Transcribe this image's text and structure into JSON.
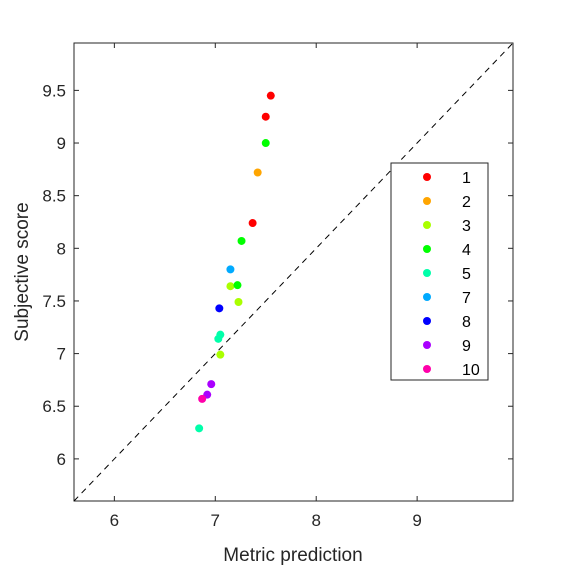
{
  "chart_data": {
    "type": "scatter",
    "title": "",
    "xlabel": "Metric prediction",
    "ylabel": "Subjective score",
    "xlim": [
      5.6,
      9.95
    ],
    "ylim": [
      5.6,
      9.95
    ],
    "xticks": [
      6,
      7,
      8,
      9
    ],
    "yticks": [
      6,
      6.5,
      7,
      7.5,
      8,
      8.5,
      9,
      9.5
    ],
    "x_tick_labels": [
      "6",
      "7",
      "8",
      "9"
    ],
    "y_tick_labels": [
      "6",
      "6.5",
      "7",
      "7.5",
      "8",
      "8.5",
      "9",
      "9.5"
    ],
    "grid": false,
    "reference_line": {
      "style": "dashed",
      "from": [
        5.6,
        5.6
      ],
      "to": [
        9.95,
        9.95
      ]
    },
    "legend": {
      "placement": "right"
    },
    "series": [
      {
        "name": "1",
        "color": "#ff0000",
        "points": [
          [
            7.55,
            9.45
          ],
          [
            7.5,
            9.25
          ],
          [
            7.37,
            8.24
          ]
        ]
      },
      {
        "name": "2",
        "color": "#ffa500",
        "points": [
          [
            7.42,
            8.72
          ]
        ]
      },
      {
        "name": "3",
        "color": "#aaff00",
        "points": [
          [
            7.15,
            7.64
          ],
          [
            7.23,
            7.49
          ],
          [
            7.05,
            6.99
          ]
        ]
      },
      {
        "name": "4",
        "color": "#00ff00",
        "points": [
          [
            7.5,
            9.0
          ],
          [
            7.26,
            8.07
          ],
          [
            7.22,
            7.65
          ]
        ]
      },
      {
        "name": "5",
        "color": "#00ffaa",
        "points": [
          [
            7.05,
            7.18
          ],
          [
            7.03,
            7.14
          ],
          [
            6.84,
            6.29
          ]
        ]
      },
      {
        "name": "7",
        "color": "#00aaff",
        "points": [
          [
            7.15,
            7.8
          ]
        ]
      },
      {
        "name": "8",
        "color": "#0000ff",
        "points": [
          [
            7.04,
            7.43
          ]
        ]
      },
      {
        "name": "9",
        "color": "#aa00ff",
        "points": [
          [
            6.96,
            6.71
          ],
          [
            6.92,
            6.61
          ]
        ]
      },
      {
        "name": "10",
        "color": "#ff00aa",
        "points": [
          [
            6.87,
            6.57
          ]
        ]
      }
    ]
  }
}
